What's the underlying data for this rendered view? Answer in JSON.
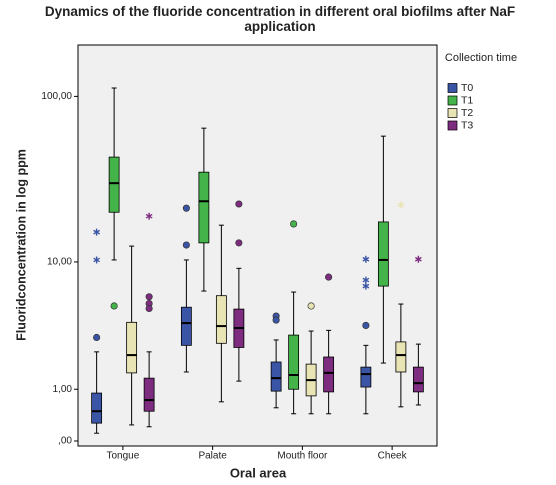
{
  "chart_data": {
    "type": "boxplot",
    "title": "Dynamics of the fluoride concentration in different oral biofilms after NaF application",
    "x_label": "Oral area",
    "y_label": "Fluoridconcentration in log ppm",
    "legend_title": "Collection time",
    "legend_position": "right",
    "y_scale": "log1p",
    "ylim": [
      0,
      200
    ],
    "yticks": [
      {
        "value": 100,
        "label": "100,00"
      },
      {
        "value": 10,
        "label": "10,00"
      },
      {
        "value": 1,
        "label": "1,00"
      },
      {
        "value": 0,
        "label": ",00"
      }
    ],
    "categories": [
      "Tongue",
      "Palate",
      "Mouth floor",
      "Cheek"
    ],
    "series": [
      {
        "name": "T0",
        "color": "#3b55a6",
        "boxes": [
          {
            "min": 0.11,
            "q1": 0.27,
            "median": 0.49,
            "q3": 0.9,
            "max": 2.3,
            "outliers": [
              3.0
            ],
            "extremes": [
              15.4,
              10.3
            ]
          },
          {
            "min": 1.52,
            "q1": 2.6,
            "median": 3.85,
            "q3": 5.0,
            "max": 10.3,
            "outliers": [
              21.6,
              12.8
            ],
            "extremes": []
          },
          {
            "min": 0.56,
            "q1": 0.95,
            "median": 1.32,
            "q3": 1.88,
            "max": 2.87,
            "outliers": [
              4.33,
              4.05
            ],
            "extremes": []
          },
          {
            "min": 0.44,
            "q1": 1.06,
            "median": 1.45,
            "q3": 1.69,
            "max": 2.6,
            "outliers": [
              3.7
            ],
            "extremes": [
              10.4,
              7.63,
              6.96
            ]
          }
        ]
      },
      {
        "name": "T1",
        "color": "#44b349",
        "boxes": [
          {
            "min": 10.3,
            "q1": 20.4,
            "median": 30.6,
            "q3": 43.8,
            "max": 112,
            "outliers": [
              5.1
            ],
            "extremes": []
          },
          {
            "min": 6.45,
            "q1": 13.2,
            "median": 23.8,
            "q3": 35.6,
            "max": 65,
            "outliers": [],
            "extremes": []
          },
          {
            "min": 0.44,
            "q1": 1.0,
            "median": 1.42,
            "q3": 3.13,
            "max": 6.35,
            "outliers": [
              17.3
            ],
            "extremes": []
          },
          {
            "min": 1.84,
            "q1": 6.96,
            "median": 10.3,
            "q3": 17.8,
            "max": 58.3,
            "outliers": [],
            "extremes": []
          }
        ]
      },
      {
        "name": "T2",
        "color": "#e8e4b4",
        "boxes": [
          {
            "min": 0.24,
            "q1": 1.49,
            "median": 2.16,
            "q3": 3.9,
            "max": 12.6,
            "outliers": [],
            "extremes": []
          },
          {
            "min": 0.69,
            "q1": 2.7,
            "median": 3.66,
            "q3": 6.0,
            "max": 17,
            "outliers": [],
            "extremes": []
          },
          {
            "min": 0.44,
            "q1": 0.83,
            "median": 1.26,
            "q3": 1.8,
            "max": 3.36,
            "outliers": [
              5.1
            ],
            "extremes": []
          },
          {
            "min": 0.58,
            "q1": 1.52,
            "median": 2.16,
            "q3": 2.77,
            "max": 5.26,
            "outliers": [],
            "extremes": [
              22.6
            ]
          }
        ]
      },
      {
        "name": "T3",
        "color": "#7d2c80",
        "boxes": [
          {
            "min": 0.21,
            "q1": 0.49,
            "median": 0.73,
            "q3": 1.32,
            "max": 2.3,
            "outliers": [
              5.9,
              5.3,
              4.9
            ],
            "extremes": [
              19.3
            ]
          },
          {
            "min": 1.23,
            "q1": 2.5,
            "median": 3.54,
            "q3": 4.85,
            "max": 9.1,
            "outliers": [
              22.9,
              13.2
            ],
            "extremes": []
          },
          {
            "min": 0.44,
            "q1": 0.93,
            "median": 1.49,
            "q3": 2.08,
            "max": 3.4,
            "outliers": [
              7.98
            ],
            "extremes": []
          },
          {
            "min": 0.62,
            "q1": 0.93,
            "median": 1.17,
            "q3": 1.69,
            "max": 2.66,
            "outliers": [],
            "extremes": [
              10.4
            ]
          }
        ]
      }
    ]
  }
}
